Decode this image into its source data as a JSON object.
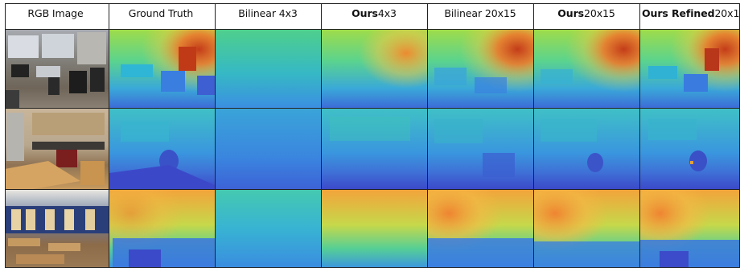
{
  "figure": {
    "columns": [
      {
        "key": "rgb",
        "bold": "",
        "label": "RGB Image"
      },
      {
        "key": "gt",
        "bold": "",
        "label": "Ground Truth"
      },
      {
        "key": "bil4",
        "bold": "",
        "label": "Bilinear 4x3"
      },
      {
        "key": "ours4",
        "bold": "Ours",
        "label": " 4x3"
      },
      {
        "key": "bil20",
        "bold": "",
        "label": "Bilinear 20x15"
      },
      {
        "key": "ours20",
        "bold": "Ours",
        "label": " 20x15"
      },
      {
        "key": "ref20",
        "bold": "Ours Refined",
        "label": " 20x15"
      }
    ],
    "rows": [
      {
        "scene": "office-room"
      },
      {
        "scene": "kitchen"
      },
      {
        "scene": "classroom-library"
      }
    ],
    "colors": {
      "far": "#c8401a",
      "mid_far": "#f2a23c",
      "mid": "#9fd84a",
      "mid_near": "#3fc7a8",
      "near": "#3d8ee0",
      "nearest": "#3b49c9"
    }
  }
}
